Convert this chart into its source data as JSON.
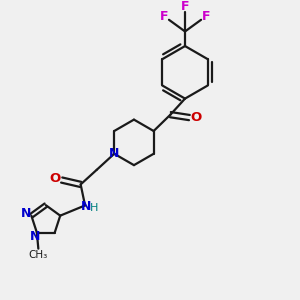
{
  "bg_color": "#f0f0f0",
  "bond_color": "#1a1a1a",
  "N_color": "#0000cc",
  "O_color": "#cc0000",
  "F_color": "#cc00cc",
  "H_color": "#008080",
  "figsize": [
    3.0,
    3.0
  ],
  "dpi": 100,
  "xlim": [
    0,
    10
  ],
  "ylim": [
    0,
    10
  ]
}
